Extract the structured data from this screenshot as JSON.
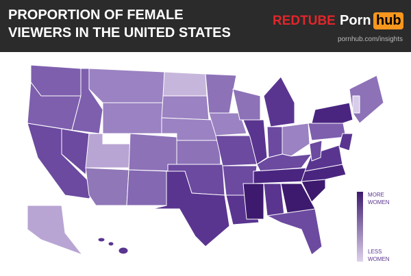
{
  "header": {
    "title": [
      "PROPORTION OF FEMALE",
      "VIEWERS IN THE UNITED STATES"
    ],
    "brand_1": "REDTUBE",
    "brand_2": {
      "left": "Porn",
      "right": "hub"
    },
    "url": "pornhub.com/insights"
  },
  "legend": {
    "top": [
      "MORE",
      "WOMEN"
    ],
    "bottom": [
      "LESS",
      "WOMEN"
    ]
  }
}
